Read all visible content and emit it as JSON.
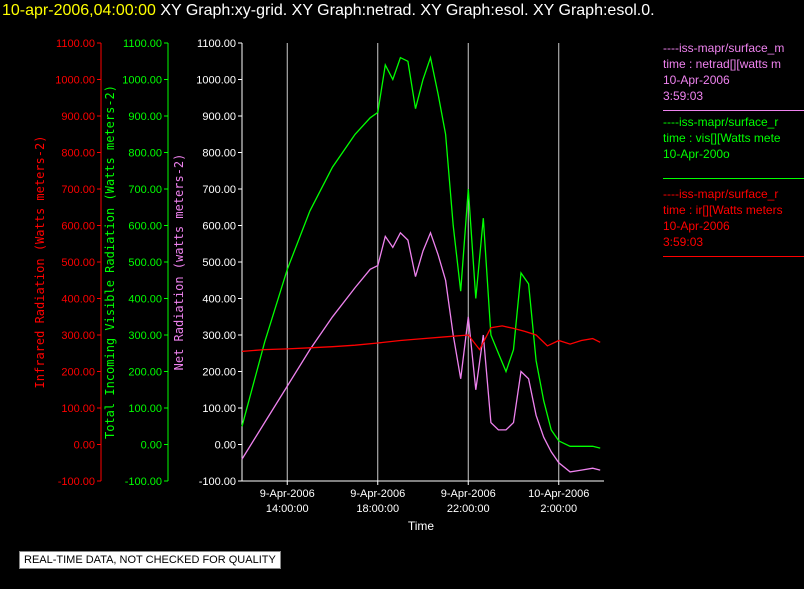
{
  "title": {
    "timestamp": "10-apr-2006,04:00:00",
    "graphs": "XY Graph:xy-grid.  XY Graph:netrad.  XY Graph:esol.  XY Graph:esol.0."
  },
  "colors": {
    "ir": "#ff0000",
    "vis": "#00ff00",
    "net": "#ee82ee",
    "axis": "#ffffff",
    "grid": "#cccccc"
  },
  "legend": {
    "net": [
      "----iss-mapr/surface_m",
      "time : netrad[][watts m",
      "10-Apr-2006",
      "3:59:03"
    ],
    "vis": [
      "----iss-mapr/surface_r",
      "time : vis[][Watts mete",
      "10-Apr-200o"
    ],
    "ir": [
      "----iss-mapr/surface_r",
      "time : ir[][Watts meters",
      "10-Apr-2006",
      "3:59:03"
    ]
  },
  "note": "REAL-TIME DATA, NOT CHECKED FOR QUALITY",
  "chart_data": {
    "type": "line",
    "xlabel": "Time",
    "xlim": [
      "2006-04-09 12:00",
      "2006-04-10 04:00"
    ],
    "x_ticks": [
      {
        "date": "9-Apr-2006",
        "time": "14:00:00",
        "at": "2006-04-09 14:00"
      },
      {
        "date": "9-Apr-2006",
        "time": "18:00:00",
        "at": "2006-04-09 18:00"
      },
      {
        "date": "9-Apr-2006",
        "time": "22:00:00",
        "at": "2006-04-09 22:00"
      },
      {
        "date": "10-Apr-2006",
        "time": "2:00:00",
        "at": "2006-04-10 02:00"
      }
    ],
    "ylim": [
      -100,
      1100
    ],
    "y_ticks": [
      "1100.00",
      "1000.00",
      "900.00",
      "800.00",
      "700.00",
      "600.00",
      "500.00",
      "400.00",
      "300.00",
      "200.00",
      "100.00",
      "0.00",
      "-100.00"
    ],
    "y_axes": [
      {
        "key": "ir",
        "label": "Infrared Radiation (Watts meters-2)"
      },
      {
        "key": "vis",
        "label": "Total Incoming Visible Radiation (Watts meters-2)"
      },
      {
        "key": "net",
        "label": "Net Radiation (watts meters-2)"
      }
    ],
    "grid": true,
    "series": [
      {
        "key": "vis",
        "x": [
          "2006-04-09 12:00",
          "2006-04-09 13:00",
          "2006-04-09 14:00",
          "2006-04-09 15:00",
          "2006-04-09 16:00",
          "2006-04-09 17:00",
          "2006-04-09 17:40",
          "2006-04-09 18:00",
          "2006-04-09 18:20",
          "2006-04-09 18:40",
          "2006-04-09 19:00",
          "2006-04-09 19:20",
          "2006-04-09 19:40",
          "2006-04-09 20:00",
          "2006-04-09 20:20",
          "2006-04-09 20:40",
          "2006-04-09 21:00",
          "2006-04-09 21:20",
          "2006-04-09 21:40",
          "2006-04-09 22:00",
          "2006-04-09 22:20",
          "2006-04-09 22:40",
          "2006-04-09 23:00",
          "2006-04-09 23:20",
          "2006-04-09 23:40",
          "2006-04-10 00:00",
          "2006-04-10 00:20",
          "2006-04-10 00:40",
          "2006-04-10 01:00",
          "2006-04-10 01:20",
          "2006-04-10 01:40",
          "2006-04-10 02:00",
          "2006-04-10 02:30",
          "2006-04-10 03:00",
          "2006-04-10 03:30",
          "2006-04-10 03:50"
        ],
        "values": [
          50,
          280,
          480,
          640,
          760,
          850,
          895,
          910,
          1040,
          1000,
          1060,
          1050,
          920,
          1000,
          1060,
          960,
          850,
          600,
          420,
          700,
          400,
          620,
          300,
          250,
          200,
          260,
          470,
          440,
          230,
          120,
          40,
          10,
          -5,
          -5,
          -5,
          -10
        ]
      },
      {
        "key": "net",
        "x": [
          "2006-04-09 12:00",
          "2006-04-09 13:00",
          "2006-04-09 14:00",
          "2006-04-09 15:00",
          "2006-04-09 16:00",
          "2006-04-09 17:00",
          "2006-04-09 17:40",
          "2006-04-09 18:00",
          "2006-04-09 18:20",
          "2006-04-09 18:40",
          "2006-04-09 19:00",
          "2006-04-09 19:20",
          "2006-04-09 19:40",
          "2006-04-09 20:00",
          "2006-04-09 20:20",
          "2006-04-09 20:40",
          "2006-04-09 21:00",
          "2006-04-09 21:20",
          "2006-04-09 21:40",
          "2006-04-09 22:00",
          "2006-04-09 22:20",
          "2006-04-09 22:40",
          "2006-04-09 23:00",
          "2006-04-09 23:20",
          "2006-04-09 23:40",
          "2006-04-10 00:00",
          "2006-04-10 00:20",
          "2006-04-10 00:40",
          "2006-04-10 01:00",
          "2006-04-10 01:20",
          "2006-04-10 01:40",
          "2006-04-10 02:00",
          "2006-04-10 02:30",
          "2006-04-10 03:00",
          "2006-04-10 03:30",
          "2006-04-10 03:50"
        ],
        "values": [
          -40,
          60,
          160,
          260,
          350,
          430,
          480,
          490,
          570,
          540,
          580,
          560,
          460,
          530,
          580,
          520,
          450,
          300,
          180,
          350,
          150,
          300,
          60,
          40,
          40,
          60,
          200,
          180,
          80,
          20,
          -20,
          -50,
          -75,
          -70,
          -65,
          -70
        ]
      },
      {
        "key": "ir",
        "x": [
          "2006-04-09 12:00",
          "2006-04-09 13:00",
          "2006-04-09 14:00",
          "2006-04-09 15:00",
          "2006-04-09 16:00",
          "2006-04-09 17:00",
          "2006-04-09 18:00",
          "2006-04-09 19:00",
          "2006-04-09 20:00",
          "2006-04-09 21:00",
          "2006-04-09 22:00",
          "2006-04-09 22:30",
          "2006-04-09 23:00",
          "2006-04-09 23:30",
          "2006-04-10 00:00",
          "2006-04-10 00:30",
          "2006-04-10 01:00",
          "2006-04-10 01:30",
          "2006-04-10 02:00",
          "2006-04-10 02:30",
          "2006-04-10 03:00",
          "2006-04-10 03:30",
          "2006-04-10 03:50"
        ],
        "values": [
          255,
          260,
          262,
          265,
          268,
          272,
          278,
          285,
          290,
          295,
          300,
          260,
          320,
          325,
          318,
          310,
          300,
          270,
          285,
          275,
          285,
          290,
          280
        ]
      }
    ]
  }
}
